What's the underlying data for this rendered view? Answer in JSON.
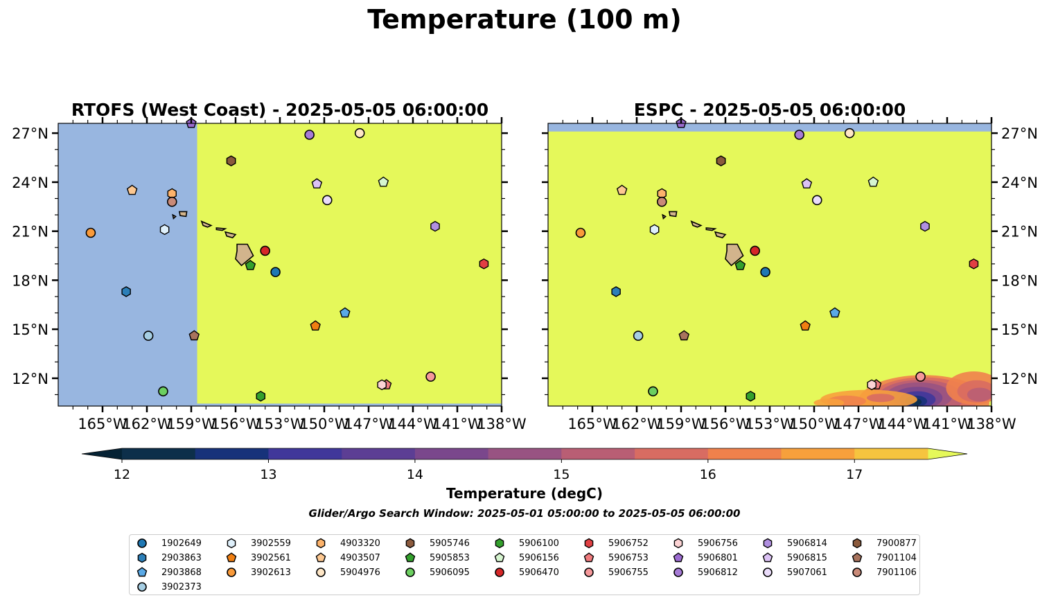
{
  "figure": {
    "suptitle": "Temperature (100 m)",
    "colorbar_label": "Temperature (degC)",
    "search_window": "Glider/Argo Search Window: 2025-05-01 05:00:00 to 2025-05-05 06:00:00"
  },
  "chart_data": [
    {
      "type": "heatmap",
      "title": "RTOFS (West Coast) - 2025-05-05 06:00:00",
      "variable": "Temperature (degC) at 100 m",
      "xlim": [
        -168,
        -138
      ],
      "ylim": [
        10.3,
        27.6
      ],
      "x_ticks": [
        "165°W",
        "162°W",
        "159°W",
        "156°W",
        "153°W",
        "150°W",
        "147°W",
        "144°W",
        "141°W",
        "138°W"
      ],
      "y_ticks": [
        "12°N",
        "15°N",
        "18°N",
        "21°N",
        "24°N",
        "27°N"
      ],
      "no_data_region": {
        "lon": [
          -168,
          -158.6
        ],
        "lat": [
          10.3,
          27.6
        ],
        "color": "#98b6e0"
      },
      "field_note": "temperature above 17.5 degC across valid domain",
      "warm_field_color": "#e5f85a"
    },
    {
      "type": "heatmap",
      "title": "ESPC - 2025-05-05 06:00:00",
      "variable": "Temperature (degC) at 100 m",
      "xlim": [
        -168,
        -138
      ],
      "ylim": [
        10.3,
        27.6
      ],
      "x_ticks": [
        "165°W",
        "162°W",
        "159°W",
        "156°W",
        "153°W",
        "150°W",
        "147°W",
        "144°W",
        "141°W",
        "138°W"
      ],
      "y_ticks": [
        "12°N",
        "15°N",
        "18°N",
        "21°N",
        "24°N",
        "27°N"
      ],
      "no_data_region": {
        "lon": [
          -168,
          -138
        ],
        "lat": [
          27.1,
          27.6
        ],
        "color": "#98b6e0"
      },
      "field_note": "temperature above 17.5 degC except a cooler patch in the south-east corner (down to ~12 degC)",
      "warm_field_color": "#e5f85a"
    }
  ],
  "colorbar": {
    "ticks": [
      12,
      13,
      14,
      15,
      16,
      17
    ],
    "range": [
      11.75,
      17.5
    ],
    "extend": "both",
    "levels": [
      {
        "from": 11.75,
        "to": 12.0,
        "color": "#052234"
      },
      {
        "from": 12.0,
        "to": 12.5,
        "color": "#0d2f4a"
      },
      {
        "from": 12.5,
        "to": 13.0,
        "color": "#17327a"
      },
      {
        "from": 13.0,
        "to": 13.5,
        "color": "#40379a"
      },
      {
        "from": 13.5,
        "to": 14.0,
        "color": "#5c3e94"
      },
      {
        "from": 14.0,
        "to": 14.5,
        "color": "#7a478c"
      },
      {
        "from": 14.5,
        "to": 15.0,
        "color": "#985382"
      },
      {
        "from": 15.0,
        "to": 15.5,
        "color": "#b95e74"
      },
      {
        "from": 15.5,
        "to": 16.0,
        "color": "#d86c62"
      },
      {
        "from": 16.0,
        "to": 16.5,
        "color": "#ef814c"
      },
      {
        "from": 16.5,
        "to": 17.0,
        "color": "#f7a03c"
      },
      {
        "from": 17.0,
        "to": 17.5,
        "color": "#f6c43f"
      }
    ],
    "over_color": "#e5f85a",
    "under_color": "#052234"
  },
  "floats": [
    {
      "id": "1902649",
      "lon": -153.3,
      "lat": 18.5,
      "color": "#1f78b4",
      "marker": "circle"
    },
    {
      "id": "2903863",
      "lon": -163.4,
      "lat": 17.3,
      "color": "#2c7fb8",
      "marker": "hexagon"
    },
    {
      "id": "2903868",
      "lon": -148.6,
      "lat": 16.0,
      "color": "#5aa9e6",
      "marker": "pentagon"
    },
    {
      "id": "3902373",
      "lon": -161.9,
      "lat": 14.6,
      "color": "#a6cee3",
      "marker": "circle"
    },
    {
      "id": "3902559",
      "lon": -160.8,
      "lat": 21.1,
      "color": "#dff0fb",
      "marker": "hexagon"
    },
    {
      "id": "3902561",
      "lon": -150.6,
      "lat": 15.2,
      "color": "#f07f12",
      "marker": "pentagon"
    },
    {
      "id": "3902613",
      "lon": -165.8,
      "lat": 20.9,
      "color": "#f99a3a",
      "marker": "circle"
    },
    {
      "id": "4903320",
      "lon": -160.3,
      "lat": 23.3,
      "color": "#fdb36b",
      "marker": "hexagon"
    },
    {
      "id": "4903507",
      "lon": -163.0,
      "lat": 23.5,
      "color": "#fdc891",
      "marker": "pentagon"
    },
    {
      "id": "5904976",
      "lon": -147.6,
      "lat": 27.0,
      "color": "#fee6c6",
      "marker": "circle"
    },
    {
      "id": "5905746",
      "lon": -156.3,
      "lat": 25.3,
      "color": "#8c5b3e",
      "marker": "hexagon"
    },
    {
      "id": "5905853",
      "lon": -155.0,
      "lat": 18.9,
      "color": "#33a02c",
      "marker": "pentagon"
    },
    {
      "id": "5906095",
      "lon": -160.9,
      "lat": 11.2,
      "color": "#6ccf60",
      "marker": "circle"
    },
    {
      "id": "5906100",
      "lon": -154.3,
      "lat": 10.9,
      "color": "#34a02c",
      "marker": "hexagon"
    },
    {
      "id": "5906156",
      "lon": -146.0,
      "lat": 24.0,
      "color": "#d6f5d0",
      "marker": "pentagon"
    },
    {
      "id": "5906470",
      "lon": -154.0,
      "lat": 19.8,
      "color": "#d62728",
      "marker": "circle"
    },
    {
      "id": "5906752",
      "lon": -139.2,
      "lat": 19.0,
      "color": "#e14043",
      "marker": "hexagon"
    },
    {
      "id": "5906753",
      "lon": -145.8,
      "lat": 11.6,
      "color": "#f07b7e",
      "marker": "pentagon"
    },
    {
      "id": "5906755",
      "lon": -142.8,
      "lat": 12.1,
      "color": "#f5989a",
      "marker": "circle"
    },
    {
      "id": "5906756",
      "lon": -146.1,
      "lat": 11.6,
      "color": "#fcd3d4",
      "marker": "hexagon"
    },
    {
      "id": "5906801",
      "lon": -159.0,
      "lat": 27.6,
      "color": "#9c6bd1",
      "marker": "pentagon"
    },
    {
      "id": "5906812",
      "lon": -151.0,
      "lat": 26.9,
      "color": "#a67bd6",
      "marker": "circle"
    },
    {
      "id": "5906814",
      "lon": -142.5,
      "lat": 21.3,
      "color": "#b08fe0",
      "marker": "hexagon"
    },
    {
      "id": "5906815",
      "lon": -150.5,
      "lat": 23.9,
      "color": "#dcc2f5",
      "marker": "pentagon"
    },
    {
      "id": "5907061",
      "lon": -149.8,
      "lat": 22.9,
      "color": "#eadcfa",
      "marker": "circle"
    },
    {
      "id": "7900877",
      "lon": -156.3,
      "lat": 25.3,
      "color": "#8b5a3c",
      "marker": "hexagon"
    },
    {
      "id": "7901104",
      "lon": -158.8,
      "lat": 14.6,
      "color": "#a8735d",
      "marker": "pentagon"
    },
    {
      "id": "7901106",
      "lon": -160.3,
      "lat": 22.8,
      "color": "#c98a78",
      "marker": "circle"
    }
  ],
  "land_color": "#d2b48c",
  "field_cold_patch_espc": [
    {
      "lon": [
        -150,
        -138
      ],
      "lat": [
        10.3,
        12.5
      ],
      "note": "warm-to-cool orange/purple eddies"
    }
  ]
}
